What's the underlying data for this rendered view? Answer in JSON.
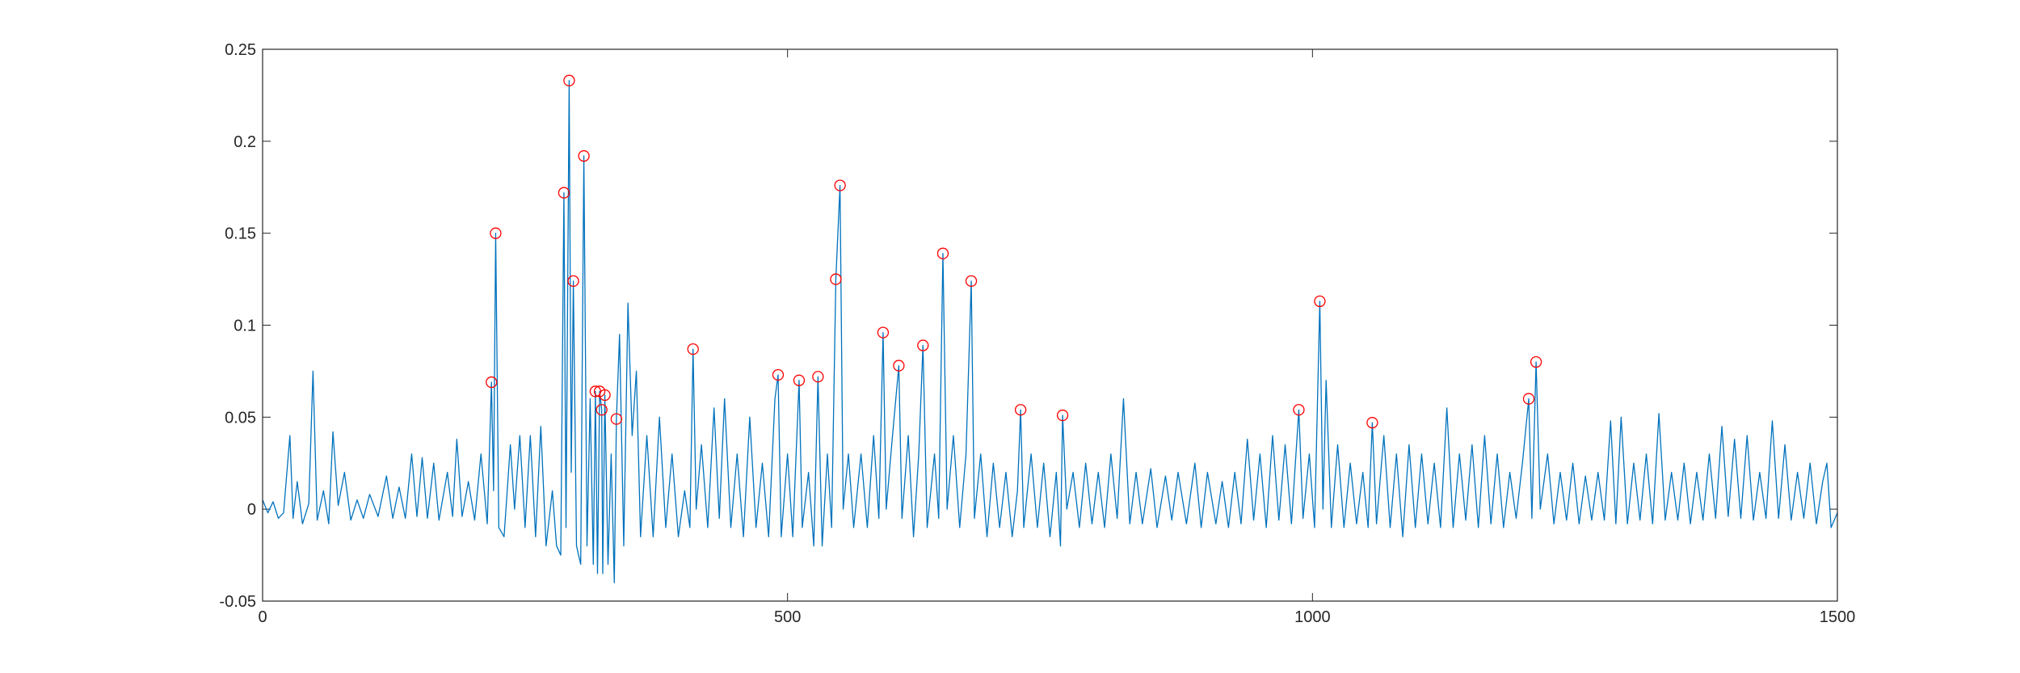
{
  "chart_data": {
    "type": "line",
    "xlim": [
      0,
      1500
    ],
    "xticks": [
      0,
      500,
      1000,
      1500
    ],
    "ylim": [
      -0.05,
      0.25
    ],
    "yticks": [
      -0.05,
      0,
      0.05,
      0.1,
      0.15,
      0.2,
      0.25
    ],
    "box": true,
    "series": [
      {
        "color": "#0072bd",
        "line": true,
        "marker": "none",
        "x": [
          0,
          5,
          10,
          15,
          20,
          26,
          29,
          33,
          38,
          44,
          48,
          52,
          58,
          63,
          67,
          72,
          78,
          84,
          90,
          96,
          102,
          110,
          118,
          124,
          130,
          136,
          142,
          147,
          152,
          157,
          163,
          168,
          176,
          181,
          185,
          190,
          196,
          202,
          208,
          214,
          218,
          220,
          222,
          225,
          230,
          236,
          240,
          245,
          250,
          255,
          260,
          265,
          270,
          276,
          280,
          284,
          287,
          289,
          292,
          294,
          296,
          299,
          303,
          306,
          309,
          312,
          315,
          317,
          319,
          321,
          323,
          324,
          326,
          329,
          332,
          335,
          337,
          340,
          344,
          348,
          352,
          356,
          360,
          366,
          372,
          378,
          384,
          390,
          396,
          402,
          407,
          410,
          413,
          418,
          424,
          430,
          435,
          440,
          446,
          452,
          458,
          464,
          470,
          476,
          482,
          488,
          491,
          494,
          500,
          505,
          511,
          514,
          520,
          525,
          529,
          533,
          538,
          542,
          546,
          550,
          553,
          558,
          563,
          570,
          576,
          582,
          587,
          591,
          594,
          600,
          606,
          609,
          615,
          620,
          625,
          629,
          633,
          640,
          644,
          648,
          652,
          658,
          664,
          670,
          675,
          678,
          684,
          690,
          696,
          702,
          708,
          714,
          719,
          722,
          725,
          732,
          738,
          744,
          750,
          756,
          760,
          762,
          766,
          772,
          778,
          784,
          790,
          796,
          802,
          808,
          814,
          820,
          826,
          832,
          838,
          846,
          852,
          860,
          866,
          872,
          880,
          888,
          894,
          900,
          908,
          914,
          920,
          926,
          932,
          938,
          944,
          950,
          956,
          962,
          968,
          974,
          980,
          987,
          991,
          997,
          1002,
          1007,
          1010,
          1013,
          1018,
          1024,
          1030,
          1036,
          1042,
          1048,
          1053,
          1057,
          1061,
          1068,
          1074,
          1080,
          1086,
          1092,
          1098,
          1104,
          1110,
          1116,
          1122,
          1128,
          1134,
          1140,
          1146,
          1152,
          1158,
          1164,
          1170,
          1176,
          1182,
          1188,
          1194,
          1200,
          1206,
          1209,
          1213,
          1217,
          1224,
          1230,
          1236,
          1242,
          1248,
          1254,
          1260,
          1266,
          1272,
          1278,
          1284,
          1289,
          1294,
          1300,
          1306,
          1312,
          1318,
          1324,
          1330,
          1336,
          1342,
          1348,
          1354,
          1360,
          1366,
          1372,
          1378,
          1384,
          1390,
          1396,
          1402,
          1408,
          1414,
          1420,
          1426,
          1432,
          1438,
          1444,
          1450,
          1456,
          1462,
          1468,
          1474,
          1480,
          1486,
          1490,
          1494,
          1500
        ],
        "values": [
          0.005,
          -0.002,
          0.004,
          -0.005,
          -0.002,
          0.04,
          -0.005,
          0.015,
          -0.008,
          0.003,
          0.075,
          -0.006,
          0.01,
          -0.008,
          0.042,
          0.002,
          0.02,
          -0.006,
          0.005,
          -0.005,
          0.008,
          -0.004,
          0.018,
          -0.005,
          0.012,
          -0.005,
          0.03,
          -0.004,
          0.028,
          -0.005,
          0.025,
          -0.006,
          0.02,
          -0.004,
          0.038,
          -0.004,
          0.015,
          -0.006,
          0.03,
          -0.008,
          0.069,
          0.01,
          0.15,
          -0.01,
          -0.015,
          0.035,
          0.0,
          0.04,
          -0.01,
          0.04,
          -0.015,
          0.045,
          -0.02,
          0.01,
          -0.02,
          -0.025,
          0.172,
          -0.01,
          0.233,
          0.02,
          0.124,
          -0.02,
          -0.03,
          0.192,
          -0.02,
          0.06,
          -0.03,
          0.064,
          -0.035,
          0.064,
          0.054,
          -0.035,
          0.062,
          -0.03,
          0.03,
          -0.04,
          0.049,
          0.095,
          -0.02,
          0.112,
          0.04,
          0.075,
          -0.015,
          0.04,
          -0.015,
          0.05,
          -0.01,
          0.03,
          -0.015,
          0.01,
          -0.01,
          0.087,
          0.0,
          0.035,
          -0.01,
          0.055,
          -0.005,
          0.06,
          -0.01,
          0.03,
          -0.015,
          0.05,
          -0.01,
          0.025,
          -0.015,
          0.06,
          0.073,
          -0.015,
          0.03,
          -0.015,
          0.07,
          -0.01,
          0.02,
          -0.02,
          0.072,
          -0.02,
          0.03,
          -0.01,
          0.125,
          0.176,
          0.0,
          0.03,
          -0.01,
          0.03,
          -0.01,
          0.04,
          -0.005,
          0.096,
          0.0,
          0.04,
          0.078,
          -0.005,
          0.04,
          -0.015,
          0.03,
          0.089,
          -0.01,
          0.03,
          -0.005,
          0.139,
          0.0,
          0.04,
          -0.01,
          0.03,
          0.124,
          -0.005,
          0.03,
          -0.015,
          0.025,
          -0.01,
          0.02,
          -0.015,
          0.01,
          0.054,
          -0.01,
          0.03,
          -0.01,
          0.025,
          -0.015,
          0.02,
          -0.02,
          0.051,
          0.0,
          0.02,
          -0.01,
          0.025,
          -0.008,
          0.02,
          -0.01,
          0.03,
          -0.005,
          0.06,
          -0.008,
          0.02,
          -0.008,
          0.022,
          -0.01,
          0.018,
          -0.006,
          0.02,
          -0.008,
          0.025,
          -0.01,
          0.02,
          -0.008,
          0.015,
          -0.01,
          0.02,
          -0.008,
          0.038,
          -0.006,
          0.03,
          -0.01,
          0.04,
          -0.006,
          0.035,
          -0.008,
          0.054,
          -0.005,
          0.03,
          -0.01,
          0.113,
          0.0,
          0.07,
          -0.01,
          0.035,
          -0.01,
          0.025,
          -0.008,
          0.02,
          -0.01,
          0.047,
          -0.008,
          0.04,
          -0.01,
          0.03,
          -0.015,
          0.035,
          -0.01,
          0.03,
          -0.008,
          0.025,
          -0.01,
          0.055,
          -0.01,
          0.03,
          -0.006,
          0.035,
          -0.01,
          0.04,
          -0.008,
          0.03,
          -0.01,
          0.02,
          -0.005,
          0.025,
          0.06,
          -0.005,
          0.08,
          0.0,
          0.03,
          -0.008,
          0.02,
          -0.006,
          0.025,
          -0.008,
          0.018,
          -0.006,
          0.02,
          -0.006,
          0.048,
          -0.008,
          0.05,
          -0.008,
          0.025,
          -0.006,
          0.03,
          -0.008,
          0.052,
          -0.006,
          0.02,
          -0.006,
          0.025,
          -0.008,
          0.02,
          -0.006,
          0.03,
          -0.005,
          0.045,
          -0.004,
          0.038,
          -0.005,
          0.04,
          -0.006,
          0.02,
          -0.005,
          0.048,
          -0.005,
          0.035,
          -0.006,
          0.02,
          -0.005,
          0.025,
          -0.008,
          0.015,
          0.025,
          -0.01,
          -0.002
        ]
      },
      {
        "color": "#ff0000",
        "line": false,
        "marker": "circle",
        "x": [
          218,
          222,
          287,
          292,
          296,
          306,
          317,
          321,
          323,
          326,
          337,
          410,
          491,
          511,
          529,
          546,
          550,
          591,
          606,
          629,
          648,
          675,
          722,
          762,
          987,
          1007,
          1057,
          1206,
          1213
        ],
        "values": [
          0.069,
          0.15,
          0.172,
          0.233,
          0.124,
          0.192,
          0.064,
          0.064,
          0.054,
          0.062,
          0.049,
          0.087,
          0.073,
          0.07,
          0.072,
          0.125,
          0.176,
          0.096,
          0.078,
          0.089,
          0.139,
          0.124,
          0.054,
          0.051,
          0.054,
          0.113,
          0.047,
          0.06,
          0.08
        ]
      }
    ]
  }
}
